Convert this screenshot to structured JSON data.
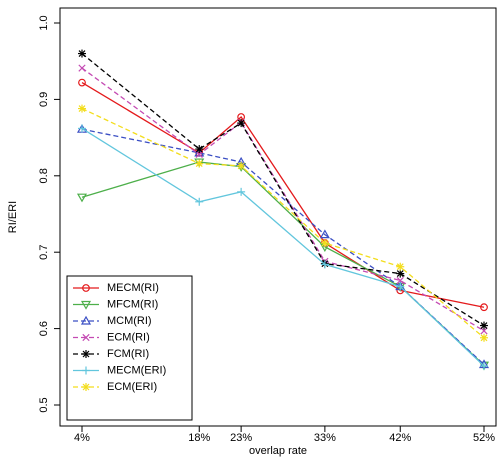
{
  "chart_data": {
    "type": "line",
    "title": "",
    "xlabel": "overlap rate",
    "ylabel": "RI/ERI",
    "x": [
      4,
      18,
      23,
      33,
      42,
      52
    ],
    "x_tick_labels": [
      "4%",
      "18%",
      "23%",
      "33%",
      "42%",
      "52%"
    ],
    "y_ticks": [
      0.5,
      0.6,
      0.7,
      0.8,
      0.9,
      1.0
    ],
    "y_tick_labels": [
      "0.5",
      "0.6",
      "0.7",
      "0.8",
      "0.9",
      "1.0"
    ],
    "xlim": [
      4,
      52
    ],
    "ylim": [
      0.5,
      1.0
    ],
    "grid": false,
    "legend_position": "bottom-left",
    "series": [
      {
        "name": "MECM(RI)",
        "color": "#e41a1c",
        "dash": "solid",
        "marker": "circle",
        "values": [
          0.922,
          0.83,
          0.877,
          0.712,
          0.65,
          0.628
        ]
      },
      {
        "name": "MFCM(RI)",
        "color": "#4daf4a",
        "dash": "solid",
        "marker": "triangle-down",
        "values": [
          0.772,
          0.818,
          0.812,
          0.707,
          0.655,
          0.552
        ]
      },
      {
        "name": "MCM(RI)",
        "color": "#3b4fc4",
        "dash": "dashed",
        "marker": "triangle-up",
        "values": [
          0.861,
          0.83,
          0.818,
          0.723,
          0.655,
          0.553
        ]
      },
      {
        "name": "ECM(RI)",
        "color": "#c44ab3",
        "dash": "dashed",
        "marker": "cross",
        "values": [
          0.941,
          0.828,
          0.87,
          0.688,
          0.663,
          0.597
        ]
      },
      {
        "name": "FCM(RI)",
        "color": "#000000",
        "dash": "dashed",
        "marker": "asterisk",
        "values": [
          0.96,
          0.835,
          0.869,
          0.685,
          0.672,
          0.604
        ]
      },
      {
        "name": "MECM(ERI)",
        "color": "#62c6dd",
        "dash": "solid",
        "marker": "plus",
        "values": [
          0.862,
          0.766,
          0.779,
          0.684,
          0.655,
          0.551
        ]
      },
      {
        "name": "ECM(ERI)",
        "color": "#f3dd1c",
        "dash": "dashed",
        "marker": "asterisk",
        "values": [
          0.888,
          0.816,
          0.813,
          0.712,
          0.681,
          0.588
        ]
      }
    ]
  }
}
